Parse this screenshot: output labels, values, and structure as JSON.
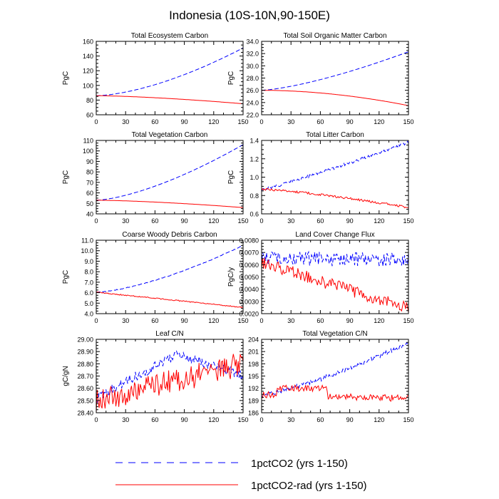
{
  "title": "Indonesia (10S-10N,90-150E)",
  "colors": {
    "series_a": "#0000ff",
    "series_b": "#ff0000",
    "axis": "#000000"
  },
  "legend": [
    {
      "label": "1pctCO2 (yrs 1-150)",
      "color": "#0000ff",
      "dash": true
    },
    {
      "label": "1pctCO2-rad (yrs 1-150)",
      "color": "#ff0000",
      "dash": false
    }
  ],
  "chart_data": [
    {
      "type": "line",
      "title": "Total Ecosystem Carbon",
      "ylabel": "PgC",
      "xlim": [
        0,
        150
      ],
      "xticks": [
        0,
        30,
        60,
        90,
        120,
        150
      ],
      "ylim": [
        60,
        160
      ],
      "yticks": [
        "60",
        "80",
        "100",
        "120",
        "140",
        "160"
      ],
      "yticksVal": [
        60,
        80,
        100,
        120,
        140,
        160
      ],
      "series": [
        {
          "color": "#0000ff",
          "dash": true,
          "start": 86,
          "end": 151,
          "curve": 1.6,
          "noise": 0
        },
        {
          "color": "#ff0000",
          "dash": false,
          "start": 86,
          "end": 75,
          "curve": 1.5,
          "noise": 0
        }
      ]
    },
    {
      "type": "line",
      "title": "Total Soil Organic Matter Carbon",
      "ylabel": "PgC",
      "xlim": [
        0,
        150
      ],
      "xticks": [
        0,
        30,
        60,
        90,
        120,
        150
      ],
      "ylim": [
        22,
        34
      ],
      "yticks": [
        "22.0",
        "24.0",
        "26.0",
        "28.0",
        "30.0",
        "32.0",
        "34.0"
      ],
      "yticksVal": [
        22,
        24,
        26,
        28,
        30,
        32,
        34
      ],
      "series": [
        {
          "color": "#0000ff",
          "dash": true,
          "start": 26,
          "end": 32.3,
          "curve": 1.4,
          "noise": 0
        },
        {
          "color": "#ff0000",
          "dash": false,
          "start": 26,
          "end": 23.5,
          "curve": 1.9,
          "noise": 0
        }
      ]
    },
    {
      "type": "line",
      "title": "Total Vegetation Carbon",
      "ylabel": "PgC",
      "xlim": [
        0,
        150
      ],
      "xticks": [
        0,
        30,
        60,
        90,
        120,
        150
      ],
      "ylim": [
        40,
        110
      ],
      "yticks": [
        "40",
        "50",
        "60",
        "70",
        "80",
        "90",
        "100",
        "110"
      ],
      "yticksVal": [
        40,
        50,
        60,
        70,
        80,
        90,
        100,
        110
      ],
      "series": [
        {
          "color": "#0000ff",
          "dash": true,
          "start": 53,
          "end": 106,
          "curve": 1.5,
          "noise": 0
        },
        {
          "color": "#ff0000",
          "dash": false,
          "start": 53,
          "end": 46,
          "curve": 1.5,
          "noise": 0
        }
      ]
    },
    {
      "type": "line",
      "title": "Total Litter Carbon",
      "ylabel": "PgC",
      "xlim": [
        0,
        150
      ],
      "xticks": [
        0,
        30,
        60,
        90,
        120,
        150
      ],
      "ylim": [
        0.6,
        1.4
      ],
      "yticks": [
        "0.6",
        "0.8",
        "1.0",
        "1.2",
        "1.4"
      ],
      "yticksVal": [
        0.6,
        0.8,
        1.0,
        1.2,
        1.4
      ],
      "series": [
        {
          "color": "#0000ff",
          "dash": true,
          "start": 0.86,
          "end": 1.38,
          "curve": 1.1,
          "noise": 0.015
        },
        {
          "color": "#ff0000",
          "dash": false,
          "start": 0.87,
          "end": 0.67,
          "curve": 1.3,
          "noise": 0.012
        }
      ]
    },
    {
      "type": "line",
      "title": "Coarse Woody Debris Carbon",
      "ylabel": "PgC",
      "xlim": [
        0,
        150
      ],
      "xticks": [
        0,
        30,
        60,
        90,
        120,
        150
      ],
      "ylim": [
        4,
        11
      ],
      "yticks": [
        "4.0",
        "5.0",
        "6.0",
        "7.0",
        "8.0",
        "9.0",
        "10.0",
        "11.0"
      ],
      "yticksVal": [
        4,
        5,
        6,
        7,
        8,
        9,
        10,
        11
      ],
      "series": [
        {
          "color": "#0000ff",
          "dash": true,
          "start": 6.05,
          "end": 10.5,
          "curve": 1.5,
          "noise": 0.03
        },
        {
          "color": "#ff0000",
          "dash": false,
          "start": 6.05,
          "end": 4.6,
          "curve": 1.0,
          "noise": 0.05
        }
      ]
    },
    {
      "type": "line",
      "title": "Land Cover Change Flux",
      "ylabel": "PgC/y",
      "xlim": [
        0,
        150
      ],
      "xticks": [
        0,
        30,
        60,
        90,
        120,
        150
      ],
      "ylim": [
        0.002,
        0.008
      ],
      "yticks": [
        "0.0020",
        "0.0030",
        "0.0040",
        "0.0050",
        "0.0060",
        "0.0070",
        "0.0080"
      ],
      "yticksVal": [
        0.002,
        0.003,
        0.004,
        0.005,
        0.006,
        0.007,
        0.008
      ],
      "series": [
        {
          "color": "#0000ff",
          "dash": true,
          "start": 0.0065,
          "end": 0.0064,
          "curve": 1.0,
          "noise": 0.0006
        },
        {
          "color": "#ff0000",
          "dash": false,
          "start": 0.0062,
          "end": 0.0024,
          "curve": 1.0,
          "noise": 0.0005
        }
      ]
    },
    {
      "type": "line",
      "title": "Leaf C/N",
      "ylabel": "gC/gN",
      "xlim": [
        0,
        150
      ],
      "xticks": [
        0,
        30,
        60,
        90,
        120,
        150
      ],
      "ylim": [
        28.4,
        29.0
      ],
      "yticks": [
        "28.40",
        "28.50",
        "28.60",
        "28.70",
        "28.80",
        "28.90",
        "29.00"
      ],
      "yticksVal": [
        28.4,
        28.5,
        28.6,
        28.7,
        28.8,
        28.9,
        29.0
      ],
      "series": [
        {
          "color": "#0000ff",
          "dash": true,
          "start": 28.52,
          "end": 28.7,
          "curve": 0.6,
          "noise": 0.04,
          "peak": 28.88
        },
        {
          "color": "#ff0000",
          "dash": false,
          "start": 28.5,
          "end": 28.8,
          "curve": 1.0,
          "noise": 0.1
        }
      ]
    },
    {
      "type": "line",
      "title": "Total Vegetation C/N",
      "ylabel": "",
      "xlim": [
        0,
        150
      ],
      "xticks": [
        0,
        30,
        60,
        90,
        120,
        150
      ],
      "ylim": [
        186,
        204
      ],
      "yticks": [
        "186",
        "189",
        "192",
        "195",
        "198",
        "201",
        "204"
      ],
      "yticksVal": [
        186,
        189,
        192,
        195,
        198,
        201,
        204
      ],
      "series": [
        {
          "color": "#0000ff",
          "dash": true,
          "start": 190.5,
          "end": 203,
          "curve": 1.3,
          "noise": 0.6
        },
        {
          "color": "#ff0000",
          "dash": false,
          "start": 190.5,
          "end": 189.5,
          "curve": 1.0,
          "noise": 0.8,
          "bump": 192
        }
      ]
    }
  ]
}
